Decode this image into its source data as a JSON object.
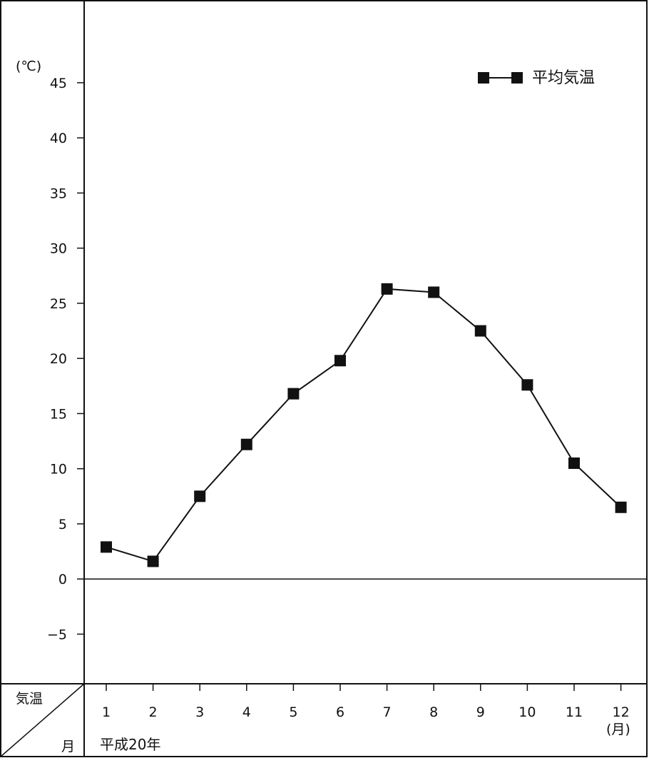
{
  "chart_data": {
    "type": "line",
    "unit_label": "(℃)",
    "x": [
      1,
      2,
      3,
      4,
      5,
      6,
      7,
      8,
      9,
      10,
      11,
      12
    ],
    "x_tick_labels": [
      "1",
      "2",
      "3",
      "4",
      "5",
      "6",
      "7",
      "8",
      "9",
      "10",
      "11",
      "12"
    ],
    "x_unit_label": "(月)",
    "era_label": "平成20年",
    "series": [
      {
        "name": "平均気温",
        "values": [
          2.9,
          1.6,
          7.5,
          12.2,
          16.8,
          19.8,
          26.3,
          26.0,
          22.5,
          17.6,
          10.5,
          6.5
        ]
      }
    ],
    "y_ticks": [
      45,
      40,
      35,
      30,
      25,
      20,
      15,
      10,
      5,
      0,
      -5
    ],
    "y_tick_labels": [
      "45",
      "40",
      "35",
      "30",
      "25",
      "20",
      "15",
      "10",
      "5",
      "0",
      "−5"
    ],
    "ylim": [
      -9.5,
      52.5
    ],
    "legend_position": "top-right",
    "corner_labels": {
      "top": "気温",
      "bottom": "月"
    },
    "grid": false,
    "colors": {
      "line": "#111111",
      "marker": "#111111",
      "border": "#111111"
    }
  }
}
